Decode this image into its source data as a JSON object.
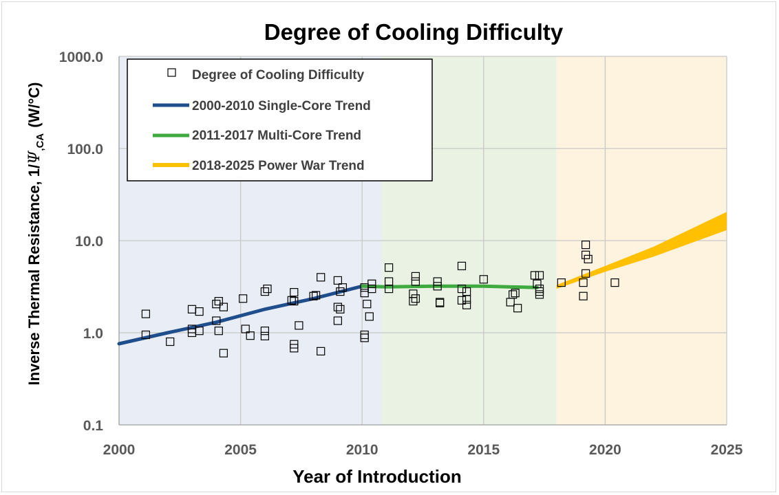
{
  "chart_data": {
    "type": "scatter",
    "title": "Degree of Cooling Difficulty",
    "xlabel": "Year of Introduction",
    "ylabel_main": "Inverse Thermal Resistance, 1/",
    "ylabel_psi": "Ψ",
    "ylabel_sub": ",CA",
    "ylabel_unit": "(W/°C)",
    "xlim": [
      2000,
      2025
    ],
    "ylim": [
      0.1,
      1000
    ],
    "yscale": "log",
    "xticks": [
      "2000",
      "2005",
      "2010",
      "2015",
      "2020",
      "2025"
    ],
    "xtick_values": [
      2000,
      2005,
      2010,
      2015,
      2020,
      2025
    ],
    "yticks": [
      "0.1",
      "1.0",
      "10.0",
      "100.0",
      "1000.0"
    ],
    "ytick_values": [
      0.1,
      1,
      10,
      100,
      1000
    ],
    "grid": true,
    "legend_position": "top-left",
    "regions": [
      {
        "name": "single-core-era",
        "x": [
          2000,
          2010.8
        ],
        "color": "#e9edf5"
      },
      {
        "name": "multi-core-era",
        "x": [
          2010.8,
          2018
        ],
        "color": "#eaf2e4"
      },
      {
        "name": "power-war-era",
        "x": [
          2018,
          2025
        ],
        "color": "#fdf3df"
      }
    ],
    "legend": [
      {
        "label": "Degree of Cooling Difficulty",
        "kind": "marker"
      },
      {
        "label": "2000-2010 Single-Core Trend",
        "kind": "line",
        "color": "#1f4e8c"
      },
      {
        "label": "2011-2017 Multi-Core Trend",
        "kind": "line",
        "color": "#3faa3f"
      },
      {
        "label": "2018-2025 Power War Trend",
        "kind": "line",
        "color": "#ffc000"
      }
    ],
    "series": [
      {
        "name": "Degree of Cooling Difficulty",
        "kind": "scatter",
        "points": [
          [
            2001.1,
            1.6
          ],
          [
            2001.1,
            0.95
          ],
          [
            2002.1,
            0.8
          ],
          [
            2003.0,
            1.8
          ],
          [
            2003.0,
            1.1
          ],
          [
            2003.0,
            1.0
          ],
          [
            2003.3,
            1.7
          ],
          [
            2003.3,
            1.05
          ],
          [
            2004.0,
            2.05
          ],
          [
            2004.1,
            2.2
          ],
          [
            2004.0,
            1.35
          ],
          [
            2004.1,
            1.05
          ],
          [
            2004.3,
            1.9
          ],
          [
            2004.3,
            0.6
          ],
          [
            2005.1,
            2.35
          ],
          [
            2005.2,
            1.1
          ],
          [
            2005.4,
            0.93
          ],
          [
            2006.0,
            2.8
          ],
          [
            2006.1,
            3.0
          ],
          [
            2006.0,
            1.05
          ],
          [
            2006.0,
            0.92
          ],
          [
            2007.1,
            2.25
          ],
          [
            2007.2,
            2.2
          ],
          [
            2007.2,
            2.75
          ],
          [
            2007.2,
            0.75
          ],
          [
            2007.2,
            0.68
          ],
          [
            2007.4,
            1.2
          ],
          [
            2008.0,
            2.5
          ],
          [
            2008.1,
            2.55
          ],
          [
            2008.3,
            4.0
          ],
          [
            2008.3,
            0.63
          ],
          [
            2009.0,
            3.7
          ],
          [
            2009.2,
            3.1
          ],
          [
            2009.1,
            2.8
          ],
          [
            2009.0,
            1.9
          ],
          [
            2009.1,
            1.8
          ],
          [
            2009.0,
            1.35
          ],
          [
            2010.1,
            3.1
          ],
          [
            2010.1,
            2.7
          ],
          [
            2010.2,
            2.05
          ],
          [
            2010.1,
            0.95
          ],
          [
            2010.1,
            0.88
          ],
          [
            2010.3,
            1.5
          ],
          [
            2010.4,
            3.4
          ],
          [
            2010.4,
            3.0
          ],
          [
            2011.1,
            5.1
          ],
          [
            2011.1,
            3.6
          ],
          [
            2011.1,
            3.0
          ],
          [
            2012.1,
            2.65
          ],
          [
            2012.2,
            2.35
          ],
          [
            2012.1,
            2.2
          ],
          [
            2012.2,
            4.1
          ],
          [
            2012.2,
            3.6
          ],
          [
            2013.1,
            3.6
          ],
          [
            2013.1,
            3.2
          ],
          [
            2013.2,
            2.15
          ],
          [
            2013.2,
            2.1
          ],
          [
            2014.1,
            5.3
          ],
          [
            2014.1,
            3.0
          ],
          [
            2014.1,
            2.25
          ],
          [
            2014.3,
            2.8
          ],
          [
            2014.3,
            2.3
          ],
          [
            2014.3,
            2.0
          ],
          [
            2015.0,
            3.8
          ],
          [
            2016.1,
            2.15
          ],
          [
            2016.2,
            2.6
          ],
          [
            2016.3,
            2.7
          ],
          [
            2016.4,
            1.85
          ],
          [
            2017.1,
            4.2
          ],
          [
            2017.3,
            4.2
          ],
          [
            2017.2,
            3.4
          ],
          [
            2017.3,
            3.0
          ],
          [
            2017.3,
            2.8
          ],
          [
            2017.3,
            2.6
          ],
          [
            2018.2,
            3.5
          ],
          [
            2019.2,
            9.0
          ],
          [
            2019.2,
            7.0
          ],
          [
            2019.3,
            6.3
          ],
          [
            2019.2,
            4.4
          ],
          [
            2019.1,
            3.5
          ],
          [
            2019.1,
            2.5
          ],
          [
            2020.4,
            3.5
          ]
        ]
      },
      {
        "name": "2000-2010 Single-Core Trend",
        "kind": "line",
        "color": "#1f4e8c",
        "points": [
          [
            2000,
            0.76
          ],
          [
            2002,
            1.0
          ],
          [
            2004,
            1.3
          ],
          [
            2006,
            1.8
          ],
          [
            2008,
            2.35
          ],
          [
            2010,
            3.2
          ]
        ]
      },
      {
        "name": "2011-2017 Multi-Core Trend",
        "kind": "line",
        "color": "#3faa3f",
        "points": [
          [
            2010,
            3.2
          ],
          [
            2011,
            3.15
          ],
          [
            2013,
            3.2
          ],
          [
            2015,
            3.2
          ],
          [
            2016,
            3.15
          ],
          [
            2017.2,
            3.1
          ]
        ]
      },
      {
        "name": "2018-2025 Power War Trend",
        "kind": "band",
        "color": "#ffc000",
        "lower": [
          [
            2018,
            3.0
          ],
          [
            2020,
            4.6
          ],
          [
            2022,
            6.7
          ],
          [
            2025,
            13.0
          ]
        ],
        "upper": [
          [
            2018,
            3.3
          ],
          [
            2020,
            5.3
          ],
          [
            2022,
            8.6
          ],
          [
            2025,
            20.5
          ]
        ]
      }
    ]
  }
}
